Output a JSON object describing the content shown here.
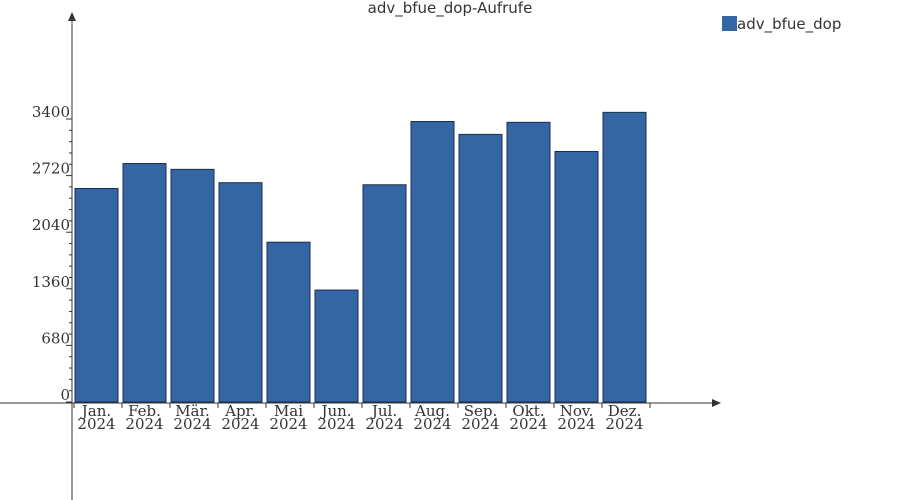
{
  "chart_data": {
    "type": "bar",
    "title": "adv_bfue_dop-Aufrufe",
    "xlabel": "",
    "ylabel": "",
    "categories": [
      [
        "Jan.",
        "2024"
      ],
      [
        "Feb.",
        "2024"
      ],
      [
        "Mär.",
        "2024"
      ],
      [
        "Apr.",
        "2024"
      ],
      [
        "Mai",
        "2024"
      ],
      [
        "Jun.",
        "2024"
      ],
      [
        "Jul.",
        "2024"
      ],
      [
        "Aug.",
        "2024"
      ],
      [
        "Sep.",
        "2024"
      ],
      [
        "Okt.",
        "2024"
      ],
      [
        "Nov.",
        "2024"
      ],
      [
        "Dez.",
        "2024"
      ]
    ],
    "series": [
      {
        "name": "adv_bfue_dop",
        "color": "#3465a4",
        "values": [
          2565,
          2865,
          2795,
          2635,
          1920,
          1345,
          2610,
          3370,
          3215,
          3360,
          3010,
          3480
        ]
      }
    ],
    "yticks": [
      0,
      680,
      1360,
      2040,
      2720,
      3400
    ],
    "ylim": [
      0,
      3400
    ],
    "grid": false,
    "legend": "top-right"
  }
}
